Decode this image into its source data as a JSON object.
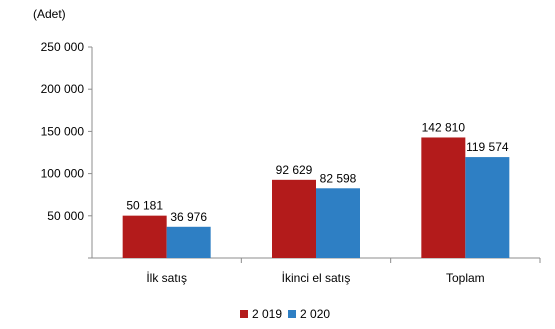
{
  "chart_data": {
    "type": "bar",
    "unit_label": "(Adet)",
    "categories": [
      "İlk satış",
      "İkinci el satış",
      "Toplam"
    ],
    "series": [
      {
        "name": "2 019",
        "color": "#b31b1b",
        "values": [
          50181,
          92629,
          142810
        ],
        "labels": [
          "50 181",
          "92 629",
          "142 810"
        ]
      },
      {
        "name": "2 020",
        "color": "#2e7fc4",
        "values": [
          36976,
          82598,
          119574
        ],
        "labels": [
          "36 976",
          "82 598",
          "119 574"
        ]
      }
    ],
    "y_ticks": [
      {
        "value": 50000,
        "label": "50 000"
      },
      {
        "value": 100000,
        "label": "100 000"
      },
      {
        "value": 150000,
        "label": "150 000"
      },
      {
        "value": 200000,
        "label": "200 000"
      },
      {
        "value": 250000,
        "label": "250 000"
      }
    ],
    "ylim": [
      0,
      250000
    ],
    "grid": false,
    "legend_position": "bottom"
  }
}
